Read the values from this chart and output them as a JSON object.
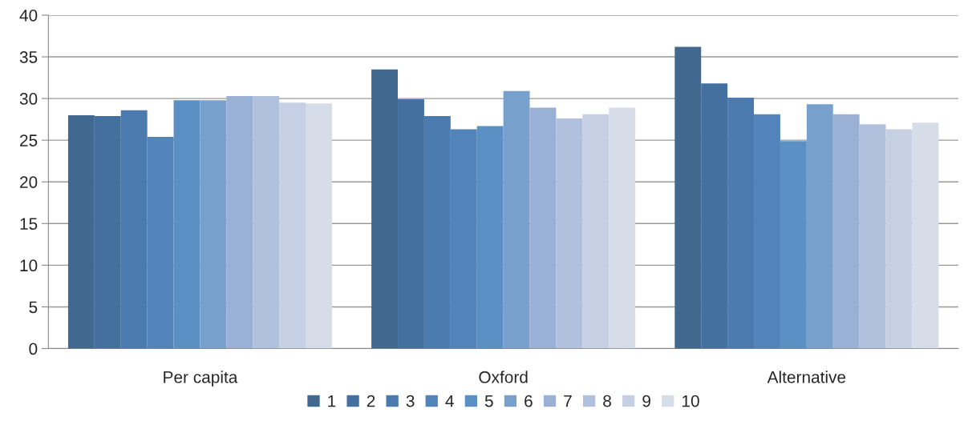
{
  "chart_data": {
    "type": "bar",
    "categories": [
      "Per capita",
      "Oxford",
      "Alternative"
    ],
    "series": [
      {
        "name": "1",
        "color": "#41698f",
        "values": [
          28.0,
          33.5,
          36.2
        ]
      },
      {
        "name": "2",
        "color": "#44709f",
        "values": [
          27.9,
          29.9,
          31.8
        ]
      },
      {
        "name": "3",
        "color": "#4a7aae",
        "values": [
          28.6,
          27.9,
          30.1
        ]
      },
      {
        "name": "4",
        "color": "#5283bb",
        "values": [
          25.4,
          26.3,
          28.1
        ]
      },
      {
        "name": "5",
        "color": "#5b90c4",
        "values": [
          29.8,
          26.7,
          24.9
        ]
      },
      {
        "name": "6",
        "color": "#77a1cc",
        "values": [
          29.8,
          30.9,
          29.3
        ]
      },
      {
        "name": "7",
        "color": "#9ab0d5",
        "values": [
          30.3,
          28.9,
          28.1
        ]
      },
      {
        "name": "8",
        "color": "#b1c0dc",
        "values": [
          30.3,
          27.6,
          26.9
        ]
      },
      {
        "name": "9",
        "color": "#c5d0e4",
        "values": [
          29.5,
          28.1,
          26.3
        ]
      },
      {
        "name": "10",
        "color": "#d6dde9",
        "values": [
          29.4,
          28.9,
          27.1
        ]
      }
    ],
    "ylim": [
      0,
      40
    ],
    "yticks": [
      0,
      5,
      10,
      15,
      20,
      25,
      30,
      35,
      40
    ],
    "grid": "y",
    "legend": "bottom"
  }
}
